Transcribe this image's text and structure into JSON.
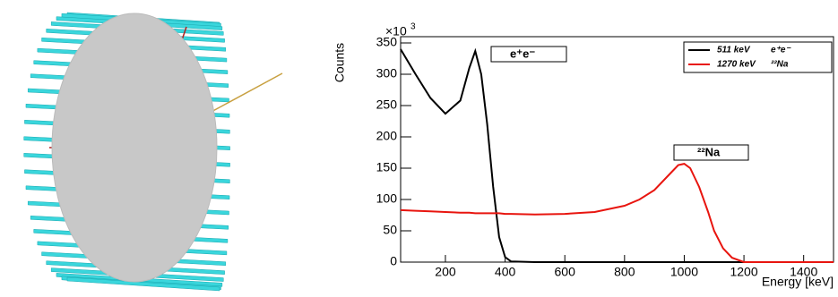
{
  "chart_data": {
    "type": "line",
    "y_label": "Counts",
    "x_label": "Energy [keV]",
    "y_multiplier": "×10",
    "y_multiplier_exponent": "3",
    "x": [
      50,
      100,
      150,
      200,
      250,
      280,
      300,
      320,
      340,
      360,
      380,
      400,
      420,
      500,
      600,
      700,
      800,
      850,
      900,
      950,
      980,
      1000,
      1020,
      1050,
      1080,
      1100,
      1130,
      1160,
      1200,
      1300,
      1400,
      1500
    ],
    "series": [
      {
        "name": "511 keV",
        "particle": "e⁺e⁻",
        "color": "#000000",
        "values": [
          340,
          300,
          262,
          237,
          258,
          310,
          337,
          300,
          220,
          120,
          40,
          8,
          1,
          0,
          0,
          0,
          0,
          0,
          0,
          0,
          0,
          0,
          0,
          0,
          0,
          0,
          0,
          0,
          0,
          0,
          0,
          0
        ]
      },
      {
        "name": "1270 keV",
        "particle": "²²Na",
        "color": "#e8150f",
        "values": [
          83,
          82,
          81,
          80,
          79,
          79,
          78,
          78,
          78,
          78,
          78,
          77,
          77,
          76,
          77,
          80,
          90,
          100,
          115,
          140,
          155,
          157,
          150,
          120,
          80,
          50,
          22,
          7,
          0,
          0,
          0,
          0
        ]
      }
    ],
    "annotations": [
      "e⁺e⁻",
      "²²Na"
    ],
    "xlim": [
      50,
      1500
    ],
    "xticks": [
      200,
      400,
      600,
      800,
      1000,
      1200,
      1400
    ],
    "ylim": [
      0,
      360
    ],
    "yticks": [
      0,
      50,
      100,
      150,
      200,
      250,
      300,
      350
    ],
    "legend": "top-right",
    "grid": false
  }
}
